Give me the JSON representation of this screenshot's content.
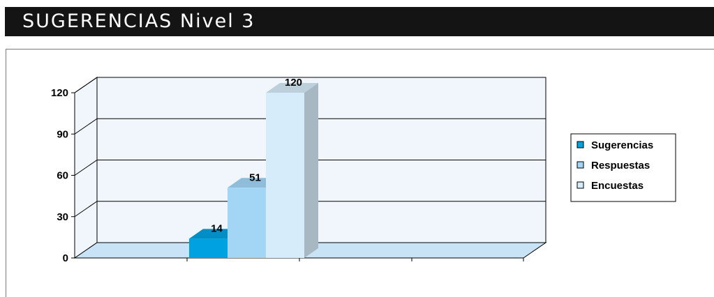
{
  "header": {
    "title": "SUGERENCIAS Nivel 3"
  },
  "colors": {
    "header_bg": "#141414",
    "header_text": "#ffffff",
    "plot_wall": "#f0f6fc",
    "plot_floor": "#c8e3f6",
    "sugerencias": "#00a1e0",
    "respuestas": "#a3d6f5",
    "encuestas": "#d6ecfa"
  },
  "chart_data": {
    "type": "bar",
    "view": "3d-clustered",
    "categories": [
      ""
    ],
    "series": [
      {
        "name": "Sugerencias",
        "values": [
          14
        ],
        "color": "#00a1e0"
      },
      {
        "name": "Respuestas",
        "values": [
          51
        ],
        "color": "#a3d6f5"
      },
      {
        "name": "Encuestas",
        "values": [
          120
        ],
        "color": "#d6ecfa"
      }
    ],
    "ylim": [
      0,
      120
    ],
    "yticks": [
      "0",
      "30",
      "60",
      "90",
      "120"
    ],
    "grid": true,
    "legend_position": "right",
    "data_labels": true
  }
}
